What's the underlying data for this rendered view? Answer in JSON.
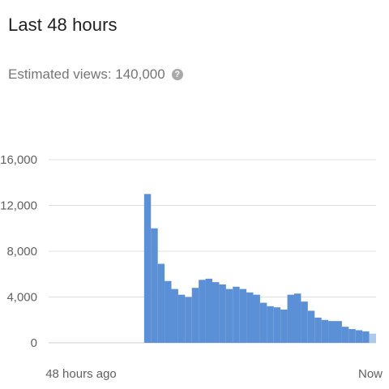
{
  "header": {
    "title": "Last 48 hours",
    "subtitle_label": "Estimated views: 140,000",
    "help_icon": "help-icon",
    "help_glyph": "?"
  },
  "colors": {
    "bar": "#5b8fd6",
    "bar_partial": "#aec8ee",
    "grid": "#e0e0e0",
    "baseline": "#cfcfcf"
  },
  "chart_data": {
    "type": "bar",
    "title": "",
    "xlabel": "",
    "ylabel": "",
    "ylim": [
      0,
      16000
    ],
    "yticks": [
      {
        "value": 0,
        "label": "0"
      },
      {
        "value": 4000,
        "label": "4,000"
      },
      {
        "value": 8000,
        "label": "8,000"
      },
      {
        "value": 12000,
        "label": "12,000"
      },
      {
        "value": 16000,
        "label": "16,000"
      }
    ],
    "x_labels": {
      "start": "48 hours ago",
      "end": "Now"
    },
    "grid": true,
    "values": [
      0,
      0,
      0,
      0,
      0,
      0,
      0,
      0,
      0,
      0,
      0,
      0,
      0,
      0,
      13000,
      10000,
      6900,
      5400,
      4700,
      4200,
      4000,
      4800,
      5500,
      5600,
      5300,
      5100,
      4700,
      4900,
      4700,
      4400,
      4200,
      3500,
      3200,
      3100,
      2900,
      4200,
      4300,
      3600,
      2800,
      2200,
      2000,
      1900,
      1900,
      1400,
      1200,
      1100,
      1000,
      800
    ],
    "partial_last_hour": true
  }
}
